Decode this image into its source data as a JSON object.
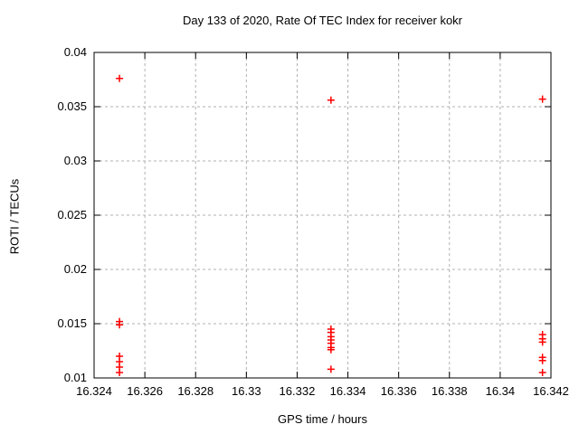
{
  "chart_data": {
    "type": "scatter",
    "title": "Day 133 of 2020, Rate Of TEC Index for receiver kokr",
    "xlabel": "GPS time / hours",
    "ylabel": "ROTI / TECUs",
    "xlim": [
      16.324,
      16.342
    ],
    "ylim": [
      0.01,
      0.04
    ],
    "xticks": [
      16.324,
      16.326,
      16.328,
      16.33,
      16.332,
      16.334,
      16.336,
      16.338,
      16.34,
      16.342
    ],
    "xtick_labels": [
      "16.324",
      "16.326",
      "16.328",
      "16.33",
      "16.332",
      "16.334",
      "16.336",
      "16.338",
      "16.34",
      "16.342"
    ],
    "yticks": [
      0.01,
      0.015,
      0.02,
      0.025,
      0.03,
      0.035,
      0.04
    ],
    "ytick_labels": [
      "0.01",
      "0.015",
      "0.02",
      "0.025",
      "0.03",
      "0.035",
      "0.04"
    ],
    "grid": true,
    "legend": "none",
    "marker": "plus",
    "marker_color": "#ff0000",
    "grid_color": "#b0b0b0",
    "axis_color": "#000000",
    "series": [
      {
        "name": "ROTI",
        "points": [
          [
            16.325,
            0.0376
          ],
          [
            16.325,
            0.0152
          ],
          [
            16.325,
            0.0149
          ],
          [
            16.325,
            0.012
          ],
          [
            16.325,
            0.0115
          ],
          [
            16.325,
            0.011
          ],
          [
            16.325,
            0.0105
          ],
          [
            16.333333,
            0.0356
          ],
          [
            16.333333,
            0.0145
          ],
          [
            16.333333,
            0.0142
          ],
          [
            16.333333,
            0.0138
          ],
          [
            16.333333,
            0.0135
          ],
          [
            16.333333,
            0.0132
          ],
          [
            16.333333,
            0.0128
          ],
          [
            16.333333,
            0.0126
          ],
          [
            16.333333,
            0.0108
          ],
          [
            16.341667,
            0.0357
          ],
          [
            16.341667,
            0.014
          ],
          [
            16.341667,
            0.0136
          ],
          [
            16.341667,
            0.0133
          ],
          [
            16.341667,
            0.0119
          ],
          [
            16.341667,
            0.0116
          ],
          [
            16.341667,
            0.0105
          ]
        ]
      }
    ]
  }
}
